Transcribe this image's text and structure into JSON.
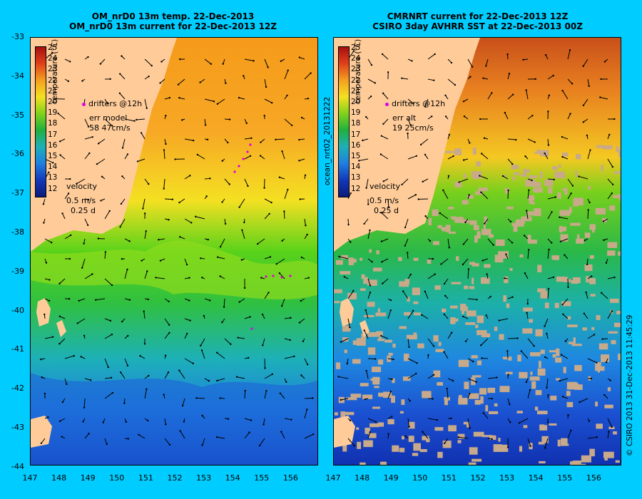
{
  "panels": {
    "left": {
      "title_line1": "OM_nrD0 13m temp. 22-Dec-2013",
      "title_line2": "OM_nrD0 13m current for 22-Dec-2013 12Z",
      "drifters_label": "drifters @12h",
      "err_label": "err model",
      "err_value": "58 47cm/s",
      "velocity_label": "velocity",
      "velocity_scale": "0.5 m/s",
      "velocity_days": "0.25 d"
    },
    "right": {
      "title_line1": "CMRNRT current for 22-Dec-2013 12Z",
      "title_line2": "CSIRO 3day AVHRR SST at 22-Dec-2013 00Z",
      "drifters_label": "drifters @12h",
      "err_label": "err alt",
      "err_value": "19 25cm/s",
      "velocity_label": "velocity",
      "velocity_scale": "0.5 m/s",
      "velocity_days": "0.25 d"
    }
  },
  "colorbar": {
    "title": "temperature (°C)",
    "ticks": [
      "25",
      "24",
      "23",
      "22",
      "21",
      "20",
      "19",
      "18",
      "17",
      "16",
      "15",
      "14",
      "13",
      "12"
    ]
  },
  "y_axis": [
    "-33",
    "-34",
    "-35",
    "-36",
    "-37",
    "-38",
    "-39",
    "-40",
    "-41",
    "-42",
    "-43",
    "-44"
  ],
  "x_axis": [
    "147",
    "148",
    "149",
    "150",
    "151",
    "152",
    "153",
    "154",
    "155",
    "156"
  ],
  "side_label": "ocean_nrt02_20131222",
  "copyright": "© CSIRO 2013   31-Dec-2013 11:45:29",
  "colors": {
    "background": "#00ccff",
    "land": "#ffcc99",
    "cloud": "#c8a98a",
    "drifters": "#e000e0"
  }
}
